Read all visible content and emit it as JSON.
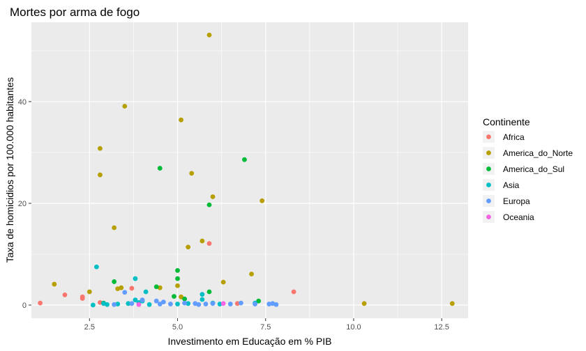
{
  "chart_data": {
    "type": "scatter",
    "title": "Mortes por arma de fogo",
    "xlabel": "Investimento em Educação em % PIB",
    "ylabel": "Taxa de homicidios por 100.000 habitantes",
    "xlim": [
      0.85,
      13.25
    ],
    "ylim": [
      -2.6,
      55.6
    ],
    "xticks": [
      2.5,
      5.0,
      7.5,
      10.0,
      12.5
    ],
    "xtick_labels": [
      "2.5",
      "5.0",
      "7.5",
      "10.0",
      "12.5"
    ],
    "yticks": [
      0,
      20,
      40
    ],
    "ytick_labels": [
      "0",
      "20",
      "40"
    ],
    "grid": true,
    "legend": {
      "title": "Continente",
      "placement": "right"
    },
    "series": [
      {
        "name": "Africa",
        "color": "#F8766D",
        "points": [
          [
            1.1,
            0.4
          ],
          [
            1.8,
            2.0
          ],
          [
            2.3,
            1.6
          ],
          [
            2.3,
            1.3
          ],
          [
            2.8,
            0.5
          ],
          [
            3.7,
            3.3
          ],
          [
            5.9,
            12.1
          ],
          [
            6.7,
            0.3
          ],
          [
            8.3,
            2.6
          ]
        ]
      },
      {
        "name": "America_do_Norte",
        "color": "#B79F00",
        "points": [
          [
            5.9,
            53.1
          ],
          [
            3.5,
            39.1
          ],
          [
            5.1,
            36.4
          ],
          [
            2.8,
            30.8
          ],
          [
            2.8,
            25.6
          ],
          [
            5.4,
            25.9
          ],
          [
            6.0,
            21.3
          ],
          [
            7.4,
            20.5
          ],
          [
            3.2,
            15.2
          ],
          [
            5.3,
            11.4
          ],
          [
            5.7,
            12.6
          ],
          [
            1.5,
            4.1
          ],
          [
            2.5,
            2.6
          ],
          [
            3.3,
            3.2
          ],
          [
            3.4,
            3.4
          ],
          [
            4.5,
            3.4
          ],
          [
            5.0,
            3.8
          ],
          [
            5.1,
            1.6
          ],
          [
            6.3,
            4.5
          ],
          [
            7.1,
            6.1
          ],
          [
            10.3,
            0.3
          ],
          [
            12.8,
            0.3
          ]
        ]
      },
      {
        "name": "America_do_Sul",
        "color": "#00BA38",
        "points": [
          [
            4.5,
            26.9
          ],
          [
            6.9,
            28.6
          ],
          [
            5.9,
            19.7
          ],
          [
            5.0,
            6.8
          ],
          [
            5.0,
            5.2
          ],
          [
            4.4,
            3.6
          ],
          [
            3.2,
            4.6
          ],
          [
            4.9,
            1.7
          ],
          [
            5.2,
            1.2
          ],
          [
            5.9,
            2.6
          ],
          [
            7.3,
            0.8
          ],
          [
            2.9,
            0.4
          ]
        ]
      },
      {
        "name": "Asia",
        "color": "#00BFC4",
        "points": [
          [
            2.7,
            7.5
          ],
          [
            3.8,
            5.2
          ],
          [
            4.1,
            2.6
          ],
          [
            5.7,
            2.1
          ],
          [
            5.7,
            1.1
          ],
          [
            3.8,
            1.0
          ],
          [
            4.0,
            0.8
          ],
          [
            3.9,
            0.5
          ],
          [
            2.9,
            0.3
          ],
          [
            3.3,
            0.2
          ],
          [
            3.6,
            0.3
          ],
          [
            4.2,
            0.1
          ],
          [
            5.0,
            0.2
          ],
          [
            5.3,
            0.3
          ],
          [
            6.0,
            0.4
          ],
          [
            6.2,
            0.2
          ],
          [
            7.2,
            0.4
          ],
          [
            2.6,
            0.0
          ],
          [
            3.0,
            0.1
          ]
        ]
      },
      {
        "name": "Europa",
        "color": "#619CFF",
        "points": [
          [
            3.5,
            2.5
          ],
          [
            4.0,
            1.0
          ],
          [
            4.4,
            0.8
          ],
          [
            4.6,
            0.6
          ],
          [
            5.2,
            0.4
          ],
          [
            5.5,
            0.3
          ],
          [
            5.8,
            0.2
          ],
          [
            6.0,
            0.3
          ],
          [
            6.5,
            0.2
          ],
          [
            6.8,
            0.4
          ],
          [
            7.6,
            0.2
          ],
          [
            7.8,
            0.1
          ],
          [
            3.2,
            0.1
          ],
          [
            4.5,
            0.2
          ],
          [
            5.6,
            0.1
          ],
          [
            7.2,
            0.2
          ],
          [
            3.7,
            0.3
          ],
          [
            4.8,
            0.2
          ],
          [
            7.7,
            0.3
          ]
        ]
      },
      {
        "name": "Oceania",
        "color": "#F564E3",
        "points": [
          [
            6.3,
            0.3
          ],
          [
            3.9,
            0.1
          ]
        ]
      }
    ]
  }
}
